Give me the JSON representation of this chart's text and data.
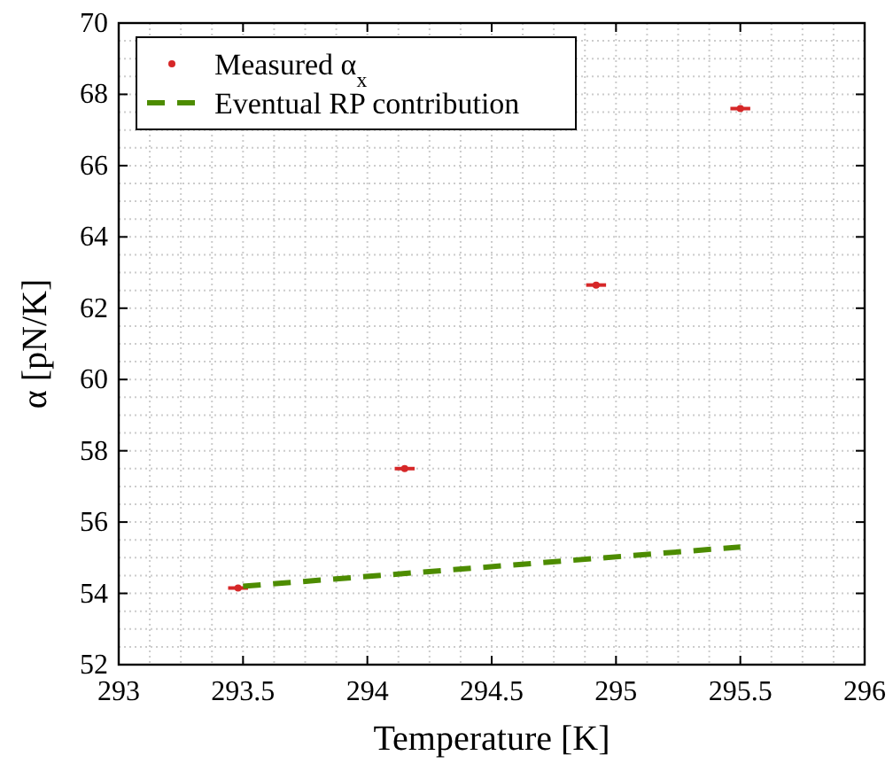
{
  "chart_data": {
    "type": "scatter",
    "xlabel": "Temperature [K]",
    "ylabel": "α [pN/K]",
    "xlim": [
      293,
      296
    ],
    "xticks": [
      293,
      293.5,
      294,
      294.5,
      295,
      295.5,
      296
    ],
    "ylim": [
      52,
      70
    ],
    "yticks": [
      52,
      54,
      56,
      58,
      60,
      62,
      64,
      66,
      68,
      70
    ],
    "grid": true,
    "legend": "top left",
    "series": [
      {
        "name": "Measured α$_{x}$",
        "color": "#d62728",
        "marker": "circle",
        "x": [
          293.48,
          294.15,
          294.92,
          295.5
        ],
        "values": [
          54.15,
          57.5,
          62.65,
          67.6
        ],
        "xerrors": [
          0.04,
          0.04,
          0.04,
          0.04
        ]
      },
      {
        "name": "Eventual RP contribution",
        "type": "line",
        "color": "#4d8c00",
        "line_style": "dashed",
        "x": [
          293.5,
          295.5
        ],
        "values": [
          54.2,
          55.3
        ]
      }
    ]
  }
}
